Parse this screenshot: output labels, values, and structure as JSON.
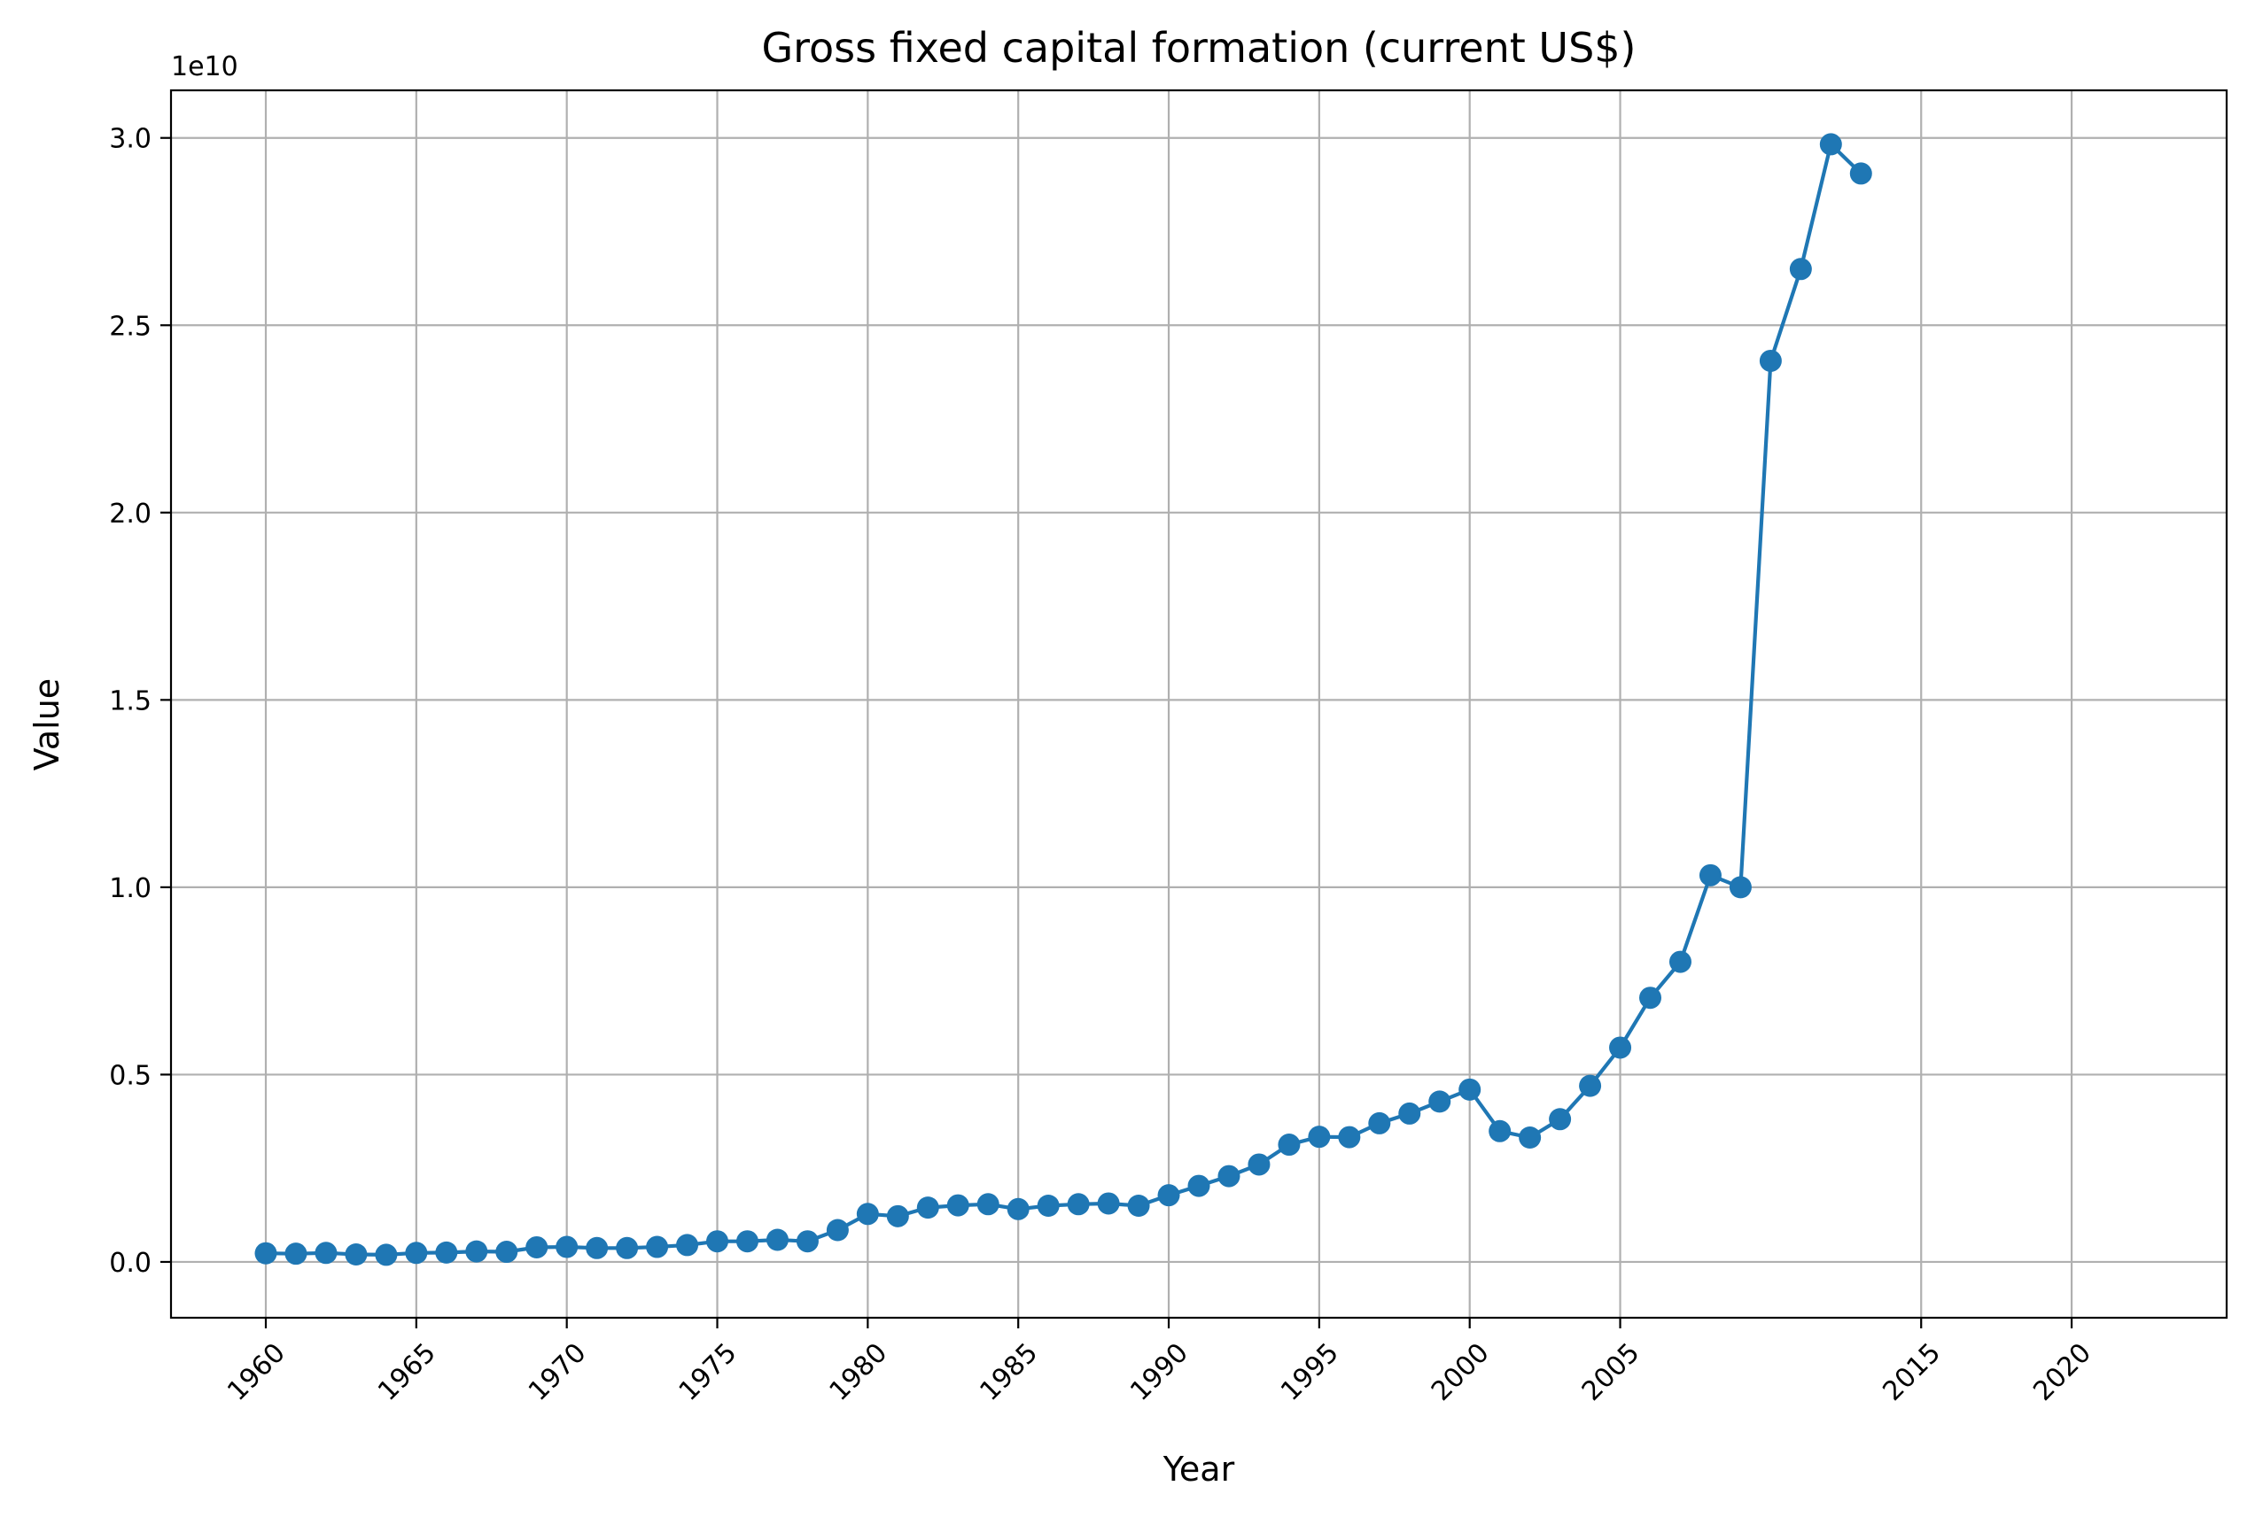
{
  "chart_data": {
    "type": "line",
    "title": "Gross fixed capital formation (current US$)",
    "xlabel": "Year",
    "ylabel": "Value",
    "y_offset_text": "1e10",
    "y_scale": 10000000000,
    "xlim": [
      1956.85,
      2025.15
    ],
    "ylim": [
      -1490000000,
      31270000000
    ],
    "x_ticks": [
      1960,
      1965,
      1970,
      1975,
      1980,
      1985,
      1990,
      1995,
      2000,
      2005,
      2015,
      2020
    ],
    "x_tick_labels": [
      "1960",
      "1965",
      "1970",
      "1975",
      "1980",
      "1985",
      "1990",
      "1995",
      "2000",
      "2005",
      "2015",
      "2020"
    ],
    "y_ticks": [
      0,
      5000000000,
      10000000000,
      15000000000,
      20000000000,
      25000000000,
      30000000000
    ],
    "y_tick_labels": [
      "0.0",
      "0.5",
      "1.0",
      "1.5",
      "2.0",
      "2.5",
      "3.0"
    ],
    "grid": true,
    "legend": "none",
    "colors": {
      "series": "#1f77b4",
      "grid": "#b0b0b0",
      "axis": "#000000"
    },
    "series": [
      {
        "marker": "circle",
        "x": [
          1960,
          1961,
          1962,
          1963,
          1964,
          1965,
          1966,
          1967,
          1968,
          1969,
          1970,
          1971,
          1972,
          1973,
          1974,
          1975,
          1976,
          1977,
          1978,
          1979,
          1980,
          1981,
          1982,
          1983,
          1984,
          1985,
          1986,
          1987,
          1988,
          1989,
          1990,
          1991,
          1992,
          1993,
          1994,
          1995,
          1996,
          1997,
          1998,
          1999,
          2000,
          2001,
          2002,
          2003,
          2004,
          2005,
          2006,
          2007,
          2008,
          2009,
          2010,
          2011,
          2012,
          2013
        ],
        "y": [
          230000000,
          220000000,
          240000000,
          200000000,
          190000000,
          240000000,
          250000000,
          280000000,
          270000000,
          390000000,
          400000000,
          370000000,
          370000000,
          400000000,
          450000000,
          550000000,
          550000000,
          590000000,
          550000000,
          850000000,
          1280000000,
          1220000000,
          1450000000,
          1510000000,
          1540000000,
          1410000000,
          1500000000,
          1540000000,
          1560000000,
          1500000000,
          1780000000,
          2030000000,
          2290000000,
          2600000000,
          3130000000,
          3340000000,
          3330000000,
          3700000000,
          3960000000,
          4280000000,
          4600000000,
          3490000000,
          3320000000,
          3810000000,
          4700000000,
          5720000000,
          7050000000,
          8010000000,
          10320000000,
          10000000000,
          24050000000,
          26500000000,
          29830000000,
          29050000000
        ]
      }
    ]
  }
}
